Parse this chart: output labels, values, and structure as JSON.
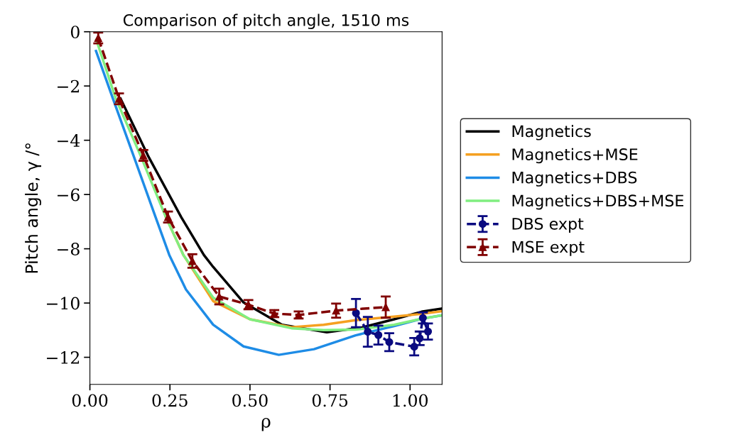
{
  "chart_data": {
    "type": "line",
    "title": "Comparison of pitch angle, 1510 ms",
    "xlabel": "ρ",
    "ylabel": "Pitch angle, γ /°",
    "xlim": [
      0,
      1.1
    ],
    "xticks": [
      {
        "value": 0,
        "label": "0.00"
      },
      0.25,
      {
        "value": 0.5,
        "label": "0.50"
      },
      0.75,
      {
        "value": 1,
        "label": "1.00"
      }
    ],
    "ylim": [
      -13,
      0
    ],
    "yticks": [
      {
        "value": 0,
        "label": "0"
      },
      {
        "value": -2,
        "label": "−2"
      },
      {
        "value": -4,
        "label": "−4"
      },
      {
        "value": -6,
        "label": "−6"
      },
      {
        "value": -8,
        "label": "−8"
      },
      {
        "value": -10,
        "label": "−10"
      },
      {
        "value": -12,
        "label": "−12"
      }
    ],
    "grid": false,
    "legend": "right",
    "series": [
      {
        "name": "Magnetics",
        "color": "#000000",
        "x": [
          0.096,
          0.181,
          0.285,
          0.356,
          0.385,
          0.48,
          0.6,
          0.74,
          0.85,
          0.95,
          1.036,
          1.1
        ],
        "values": [
          -2.47,
          -4.56,
          -6.83,
          -8.23,
          -8.67,
          -9.98,
          -10.8,
          -11.08,
          -10.9,
          -10.6,
          -10.32,
          -10.2
        ]
      },
      {
        "name": "Magnetics+MSE",
        "color": "#f5a020",
        "x": [
          0.237,
          0.292,
          0.385,
          0.5,
          0.63,
          0.73,
          0.83,
          0.95,
          1.036,
          1.1
        ],
        "values": [
          -6.83,
          -8.23,
          -9.93,
          -10.6,
          -10.89,
          -10.8,
          -10.63,
          -10.5,
          -10.4,
          -10.3
        ]
      },
      {
        "name": "Magnetics+DBS",
        "color": "#1e8ce6",
        "x": [
          0.019,
          0.072,
          0.136,
          0.205,
          0.248,
          0.3,
          0.385,
          0.48,
          0.59,
          0.7,
          0.83,
          0.95,
          1.036,
          1.1
        ],
        "values": [
          -0.71,
          -2.47,
          -4.56,
          -6.83,
          -8.23,
          -9.5,
          -10.8,
          -11.6,
          -11.91,
          -11.7,
          -11.19,
          -10.85,
          -10.58,
          -10.45
        ]
      },
      {
        "name": "Magnetics+DBS+MSE",
        "color": "#80ee80",
        "x": [
          0.02,
          0.081,
          0.158,
          0.237,
          0.292,
          0.385,
          0.5,
          0.63,
          0.73,
          0.83,
          0.95,
          1.036,
          1.1
        ],
        "values": [
          -0.3,
          -2.47,
          -4.56,
          -6.83,
          -8.23,
          -9.8,
          -10.6,
          -10.93,
          -11.0,
          -10.98,
          -10.8,
          -10.58,
          -10.45
        ]
      },
      {
        "name": "DBS expt",
        "color": "#0a0a80",
        "marker": "circle",
        "line_style": "dashed",
        "x": [
          0.831,
          0.868,
          0.901,
          0.935,
          1.013,
          1.03,
          1.04,
          1.056
        ],
        "values": [
          -10.37,
          -11.06,
          -11.18,
          -11.44,
          -11.61,
          -11.3,
          -10.55,
          -11.05
        ],
        "errors": [
          0.52,
          0.55,
          0.35,
          0.33,
          0.32,
          0.25,
          0.2,
          0.3
        ]
      },
      {
        "name": "MSE expt",
        "color": "#800000",
        "marker": "triangle",
        "line_style": "dashed",
        "x": [
          0.026,
          0.091,
          0.167,
          0.244,
          0.32,
          0.404,
          0.495,
          0.576,
          0.652,
          0.769,
          0.924
        ],
        "values": [
          -0.23,
          -2.47,
          -4.56,
          -6.83,
          -8.45,
          -9.76,
          -10.06,
          -10.39,
          -10.44,
          -10.28,
          -10.15
        ],
        "errors": [
          0.2,
          0.2,
          0.2,
          0.2,
          0.25,
          0.29,
          0.17,
          0.13,
          0.13,
          0.26,
          0.39
        ]
      }
    ]
  }
}
